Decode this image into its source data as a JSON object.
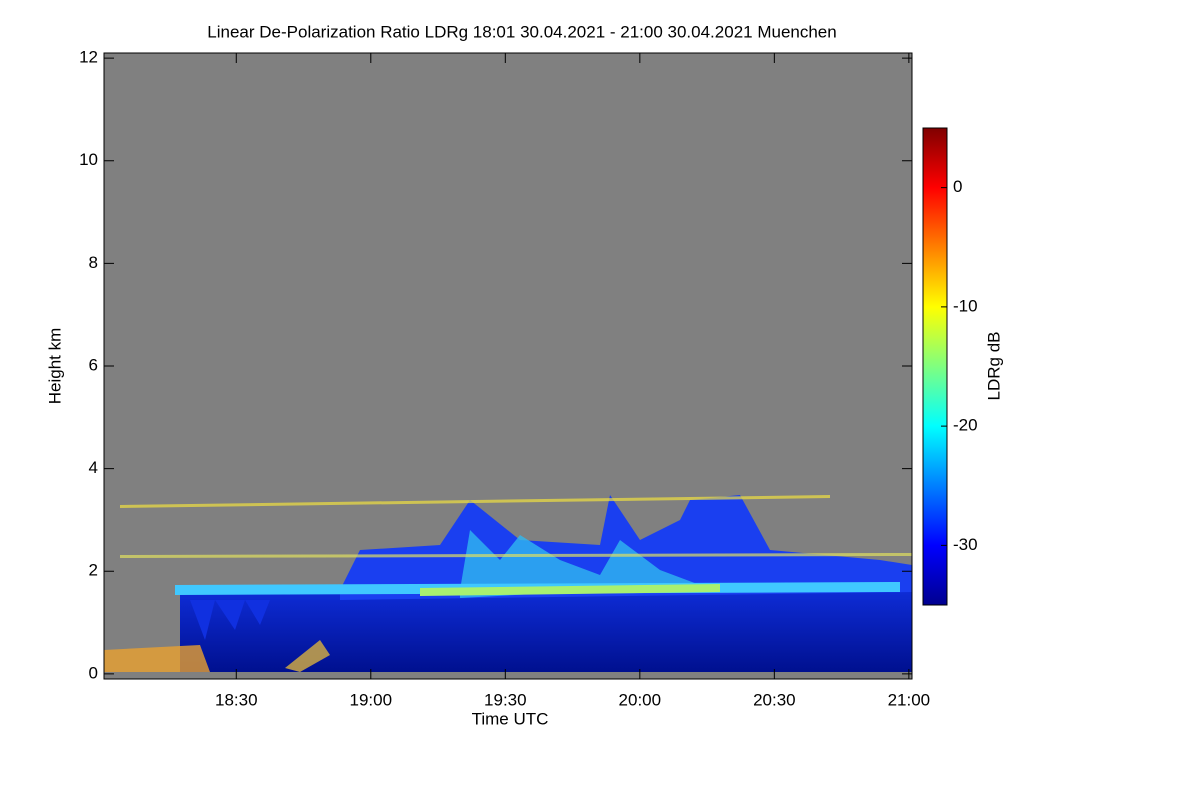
{
  "chart_data": {
    "type": "heatmap",
    "title": "Linear De-Polarization Ratio LDRg   18:01 30.04.2021 - 21:00 30.04.2021 Muenchen",
    "xlabel": "Time UTC",
    "ylabel": "Height km",
    "xlim": [
      1080.5,
      1260.7
    ],
    "xticks": [
      {
        "value": 1110,
        "label": "18:30"
      },
      {
        "value": 1140,
        "label": "19:00"
      },
      {
        "value": 1170,
        "label": "19:30"
      },
      {
        "value": 1200,
        "label": "20:00"
      },
      {
        "value": 1230,
        "label": "20:30"
      },
      {
        "value": 1260,
        "label": "21:00"
      }
    ],
    "ylim": [
      -0.1,
      12.1
    ],
    "yticks": [
      0,
      2,
      4,
      6,
      8,
      10,
      12
    ],
    "colorbar": {
      "label": "LDRg dB",
      "lim": [
        -35,
        5
      ],
      "ticks": [
        0,
        -10,
        -20,
        -30
      ],
      "colormap": "jet"
    }
  }
}
